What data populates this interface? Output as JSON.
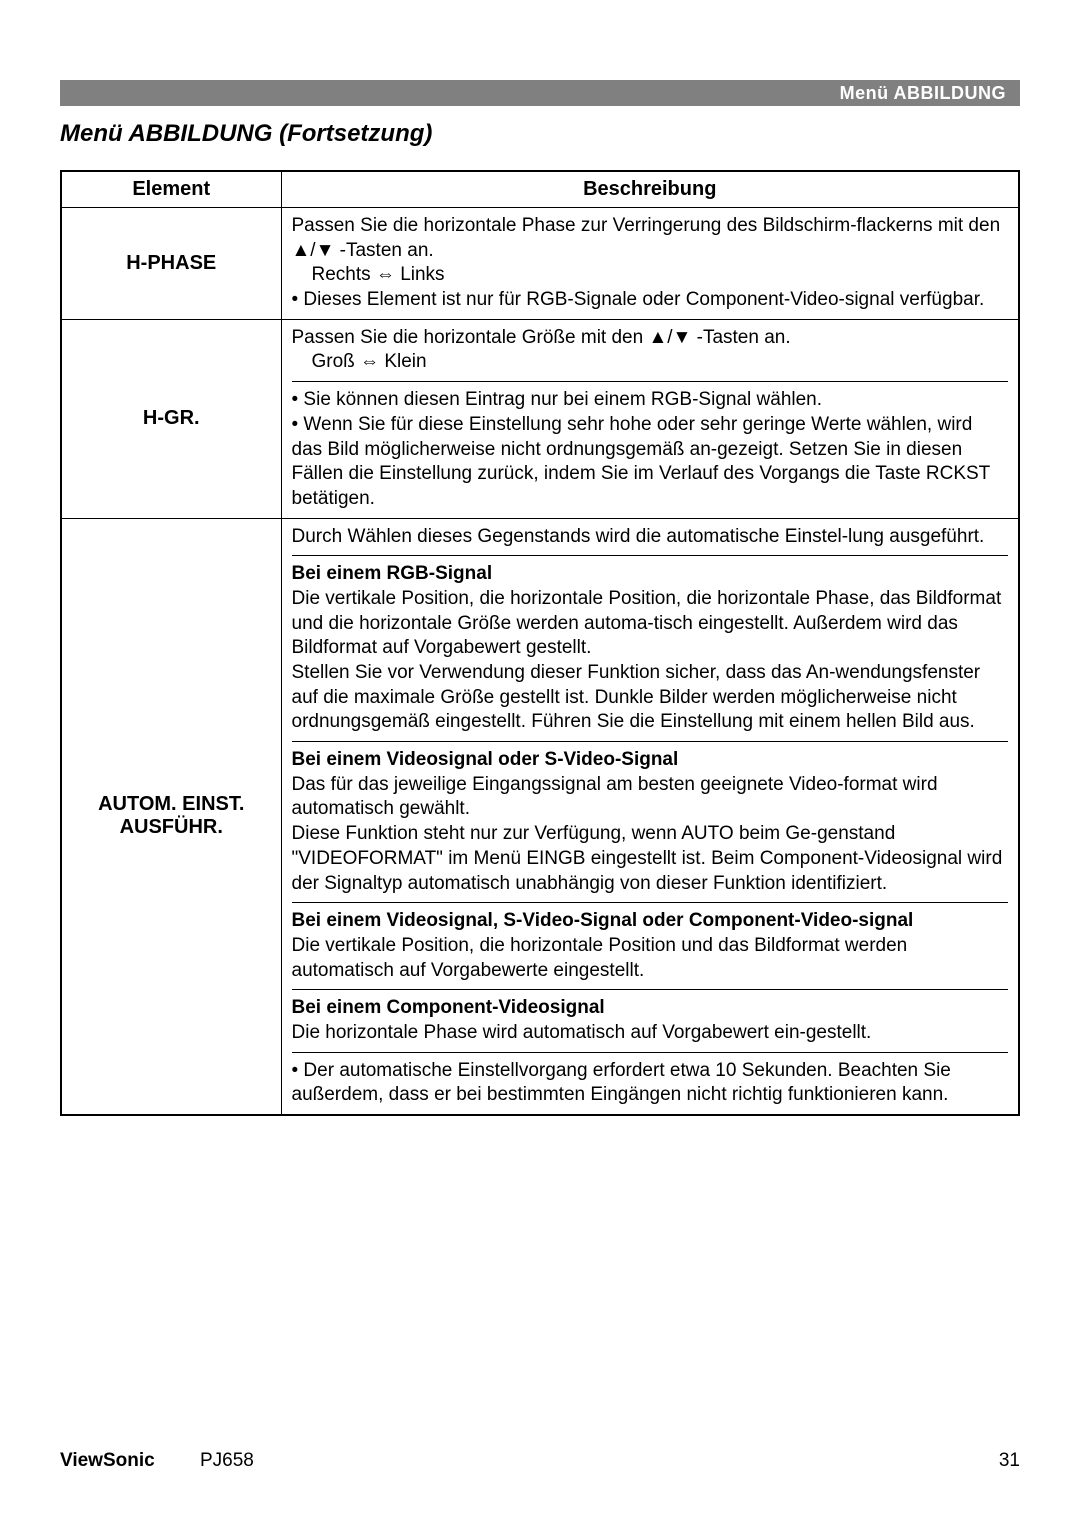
{
  "header": {
    "breadcrumb": "Menü ABBILDUNG"
  },
  "title": "Menü ABBILDUNG (Fortsetzung)",
  "table": {
    "headers": {
      "element": "Element",
      "description": "Beschreibung"
    },
    "rows": [
      {
        "element": "H-PHASE",
        "desc_p1": "Passen Sie die horizontale Phase zur Verringerung des Bildschirm-flackerns mit den ▲/▼ -Tasten an.",
        "desc_range": "Rechts ⇔ Links",
        "desc_p2": "• Dieses Element ist nur für RGB-Signale oder Component-Video-signal verfügbar."
      },
      {
        "element": "H-GR.",
        "desc_p1": "Passen Sie die horizontale Größe mit den ▲/▼ -Tasten an.",
        "desc_range": "Groß ⇔ Klein",
        "desc_p2": "• Sie können diesen Eintrag nur bei einem RGB-Signal wählen.",
        "desc_p3": "• Wenn Sie für diese Einstellung sehr hohe oder sehr geringe Werte wählen, wird das Bild möglicherweise nicht ordnungsgemäß an-gezeigt. Setzen Sie in diesen Fällen die Einstellung zurück, indem Sie im Verlauf des Vorgangs die Taste RCKST betätigen."
      },
      {
        "element": "AUTOM. EINST. AUSFÜHR.",
        "intro": "Durch Wählen dieses Gegenstands wird die automatische Einstel-lung ausgeführt.",
        "s1_title": "Bei einem RGB-Signal",
        "s1_p1": "Die vertikale Position, die horizontale Position, die horizontale Phase, das Bildformat und die horizontale Größe werden automa-tisch eingestellt. Außerdem wird das Bildformat auf Vorgabewert gestellt.",
        "s1_p2": "Stellen Sie vor Verwendung dieser Funktion sicher, dass das An-wendungsfenster auf die maximale Größe gestellt ist. Dunkle Bilder werden möglicherweise nicht ordnungsgemäß eingestellt. Führen Sie die Einstellung mit einem hellen Bild aus.",
        "s2_title": "Bei einem Videosignal oder S-Video-Signal",
        "s2_p1": "Das für das jeweilige Eingangssignal am besten geeignete Video-format wird automatisch gewählt.",
        "s2_p2": "Diese Funktion steht nur zur Verfügung, wenn AUTO beim Ge-genstand \"VIDEOFORMAT\" im Menü EINGB eingestellt ist. Beim Component-Videosignal wird der Signaltyp automatisch unabhängig von dieser Funktion identifiziert.",
        "s3_title": "Bei einem Videosignal, S-Video-Signal oder Component-Video-signal",
        "s3_p1": "Die vertikale Position, die horizontale Position und das Bildformat werden automatisch auf Vorgabewerte eingestellt.",
        "s4_title": "Bei einem Component-Videosignal",
        "s4_p1": "Die horizontale Phase wird automatisch auf Vorgabewert ein-gestellt.",
        "note": "• Der automatische Einstellvorgang erfordert etwa 10 Sekunden. Beachten Sie außerdem, dass er bei bestimmten Eingängen nicht richtig funktionieren kann."
      }
    ]
  },
  "footer": {
    "brand": "ViewSonic",
    "model": "PJ658",
    "page": "31"
  }
}
